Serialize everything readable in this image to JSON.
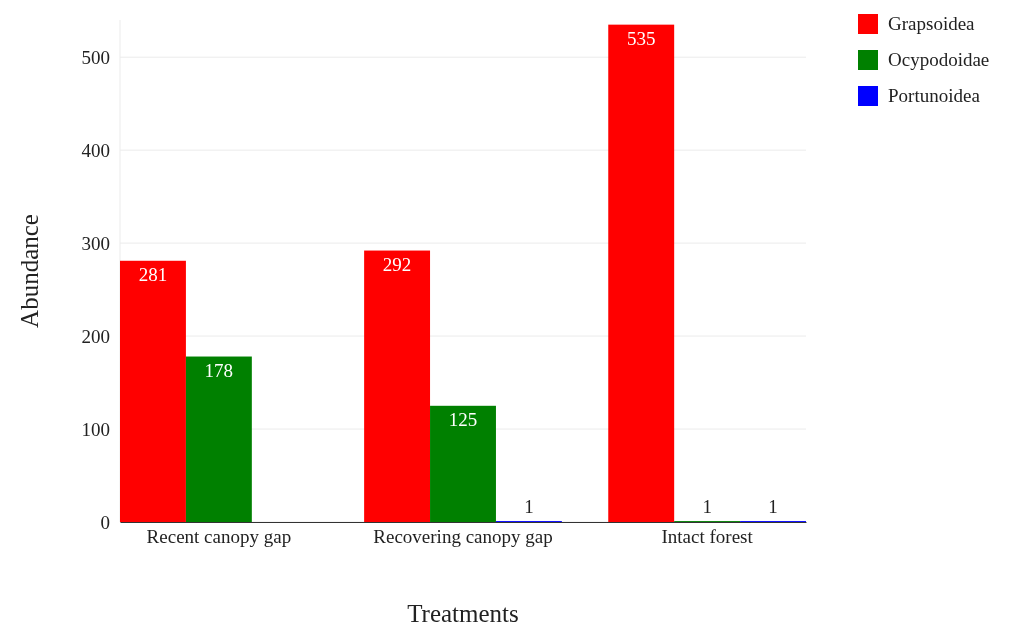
{
  "chart_data": {
    "type": "bar",
    "xlabel": "Treatments",
    "ylabel": "Abundance",
    "categories": [
      "Recent canopy gap",
      "Recovering canopy gap",
      "Intact forest"
    ],
    "series": [
      {
        "name": "Grapsoidea",
        "color": "#ff0000",
        "values": [
          281,
          292,
          535
        ]
      },
      {
        "name": "Ocypodoidae",
        "color": "#008000",
        "values": [
          178,
          125,
          1
        ]
      },
      {
        "name": "Portunoidea",
        "color": "#0000ff",
        "values": [
          null,
          1,
          1
        ]
      }
    ],
    "ylim": [
      0,
      540
    ],
    "yticks": [
      0,
      100,
      200,
      300,
      400,
      500
    ],
    "grid": "y",
    "legend": "top right",
    "data_labels": true
  }
}
